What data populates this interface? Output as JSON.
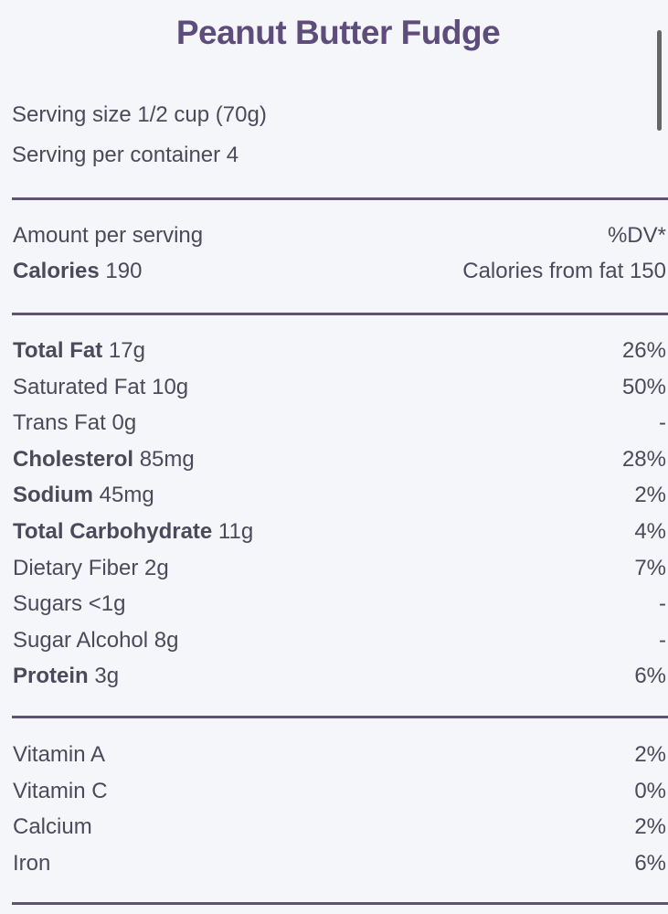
{
  "title": "Peanut Butter Fudge",
  "serving": {
    "size": "Serving size 1/2 cup (70g)",
    "per_container": "Serving per container 4"
  },
  "header": {
    "amount_label": "Amount per serving",
    "dv_label": "%DV*",
    "calories_label": "Calories",
    "calories_value": "190",
    "calories_from_fat": "Calories from fat 150"
  },
  "nutrients": [
    {
      "label": "Total Fat",
      "amount": "17g",
      "dv": "26%",
      "bold": true
    },
    {
      "label": "Saturated Fat",
      "amount": "10g",
      "dv": "50%",
      "bold": false
    },
    {
      "label": "Trans Fat",
      "amount": "0g",
      "dv": "-",
      "bold": false
    },
    {
      "label": "Cholesterol",
      "amount": "85mg",
      "dv": "28%",
      "bold": true
    },
    {
      "label": "Sodium",
      "amount": "45mg",
      "dv": "2%",
      "bold": true
    },
    {
      "label": "Total Carbohydrate",
      "amount": "11g",
      "dv": "4%",
      "bold": true
    },
    {
      "label": "Dietary Fiber",
      "amount": "2g",
      "dv": "7%",
      "bold": false
    },
    {
      "label": "Sugars",
      "amount": "<1g",
      "dv": "-",
      "bold": false
    },
    {
      "label": "Sugar Alcohol",
      "amount": "8g",
      "dv": "-",
      "bold": false
    },
    {
      "label": "Protein",
      "amount": "3g",
      "dv": "6%",
      "bold": true
    }
  ],
  "vitamins": [
    {
      "label": "Vitamin A",
      "dv": "2%"
    },
    {
      "label": "Vitamin C",
      "dv": "0%"
    },
    {
      "label": "Calcium",
      "dv": "2%"
    },
    {
      "label": "Iron",
      "dv": "6%"
    }
  ],
  "colors": {
    "title": "#5e4d7a",
    "text": "#4a4a5a",
    "divider": "#5e5275",
    "background": "#f5f6fa"
  }
}
